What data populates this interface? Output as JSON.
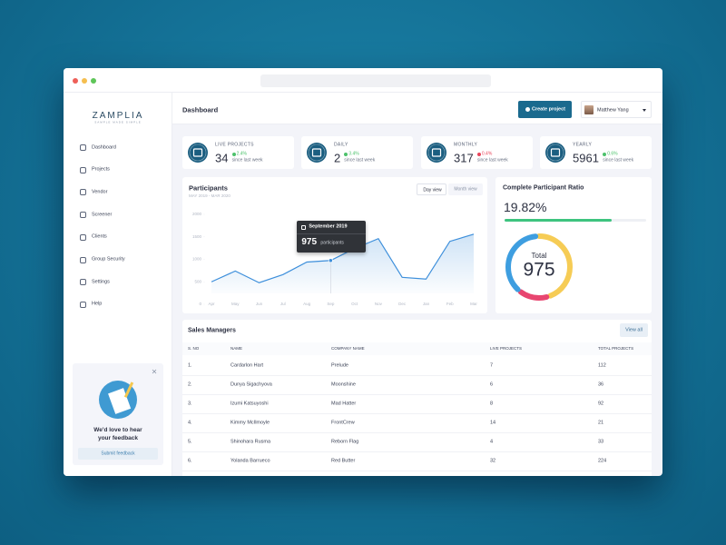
{
  "sidebar": {
    "logo": "ZAMPLIA",
    "tagline": "SAMPLE MADE SIMPLE",
    "nav": [
      "Dashboard",
      "Projects",
      "Vendor",
      "Screener",
      "Clients",
      "Group Security",
      "Settings",
      "Help"
    ]
  },
  "feedback": {
    "message": "We'd love to hear your feedback",
    "button": "Submit feedback"
  },
  "header": {
    "title": "Dashboard",
    "create_button": "Create project",
    "user": "Matthew Yang"
  },
  "stats": [
    {
      "label": "LIVE PROJECTS",
      "value": 34,
      "change": "2.4%",
      "note": "since last week",
      "trend": "up"
    },
    {
      "label": "DAILY",
      "value": 2,
      "change": "3.4%",
      "note": "since last week",
      "trend": "up"
    },
    {
      "label": "MONTHLY",
      "value": 317,
      "change": "0.4%",
      "note": "since last week",
      "trend": "down"
    },
    {
      "label": "YEARLY",
      "value": 5961,
      "change": "0.6%",
      "note": "since last week",
      "trend": "up"
    }
  ],
  "participants_chart": {
    "type": "line",
    "title": "Participants",
    "subtitle": "MAY 2019 - MAR 2020",
    "buttons": [
      "Day view",
      "Month view"
    ],
    "categories": [
      "Apr",
      "May",
      "Jun",
      "Jul",
      "Aug",
      "Sep",
      "Oct",
      "Nov",
      "Dec",
      "Jan",
      "Feb",
      "Mar"
    ],
    "values": [
      500,
      740,
      480,
      660,
      940,
      975,
      1240,
      1460,
      600,
      560,
      1400,
      1560
    ],
    "color": "#3d8fdb",
    "ylim": [
      0,
      2000
    ],
    "yticks": [
      0,
      500,
      1000,
      1500,
      2000
    ],
    "tooltip": {
      "title": "September 2019",
      "value": 975,
      "unit": "participants"
    }
  },
  "ratio": {
    "title": "Complete Participant Ratio",
    "percent": "19.82%",
    "total_label": "Total",
    "total": 975
  },
  "table": {
    "title": "Sales Managers",
    "button": "View all",
    "columns": [
      "S. NO",
      "NAME",
      "COMPANY NAME",
      "LIVE PROJECTS",
      "TOTAL PROJECTS"
    ],
    "rows": [
      [
        "1.",
        "Cardarlon Hart",
        "Prelude",
        7,
        112
      ],
      [
        "2.",
        "Dunya Sigachyova",
        "Moonshine",
        6,
        36
      ],
      [
        "3.",
        "Izumi Katsuyoshi",
        "Mad Hatter",
        8,
        92
      ],
      [
        "4.",
        "Kimmy McIlmoyle",
        "FrontCrew",
        14,
        21
      ],
      [
        "5.",
        "Shinohara Rusma",
        "Reborn Flag",
        4,
        33
      ],
      [
        "6.",
        "Yolanda Barrueco",
        "Red Butter",
        32,
        224
      ]
    ]
  }
}
